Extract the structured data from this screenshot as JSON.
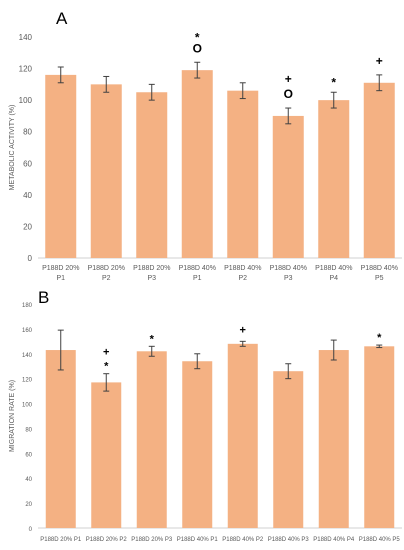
{
  "chart_data": [
    {
      "type": "bar",
      "panel_label": "A",
      "ylabel": "METABOLIC ACTIVITY  (%)",
      "ylim": [
        0,
        140
      ],
      "ytick_step": 20,
      "grid": false,
      "bar_color": "#F4B183",
      "categories": [
        [
          "P188D 20%",
          "P1"
        ],
        [
          "P188D 20%",
          "P2"
        ],
        [
          "P188D 20%",
          "P3"
        ],
        [
          "P188D 40%",
          "P1"
        ],
        [
          "P188D 40%",
          "P2"
        ],
        [
          "P188D 40%",
          "P3"
        ],
        [
          "P188D 40%",
          "P4"
        ],
        [
          "P188D 40%",
          "P5"
        ]
      ],
      "values": [
        116,
        110,
        105,
        119,
        106,
        90,
        100,
        111
      ],
      "errors": [
        5,
        5,
        5,
        5,
        5,
        5,
        5,
        5
      ],
      "annotations": [
        [],
        [],
        [],
        [
          "*",
          "O"
        ],
        [],
        [
          "+",
          "O"
        ],
        [
          "*"
        ],
        [
          "+"
        ]
      ]
    },
    {
      "type": "bar",
      "panel_label": "B",
      "ylabel": "MIGRATION RATE  (%)",
      "ylim": [
        0,
        180
      ],
      "ytick_step": 20,
      "grid": false,
      "bar_color": "#F4B183",
      "categories": [
        [
          "P188D 20% P1"
        ],
        [
          "P188D 20% P2"
        ],
        [
          "P188D 20% P3"
        ],
        [
          "P188D 40% P1"
        ],
        [
          "P188D 40% P2"
        ],
        [
          "P188D 40% P3"
        ],
        [
          "P188D 40% P4"
        ],
        [
          "P188D 40% P5"
        ]
      ],
      "values": [
        143,
        117,
        142,
        134,
        148,
        126,
        143,
        146
      ],
      "errors": [
        16,
        7,
        4,
        6,
        2,
        6,
        8,
        1
      ],
      "annotations": [
        [],
        [
          "+",
          "*"
        ],
        [
          "*"
        ],
        [],
        [
          "+"
        ],
        [],
        [],
        [
          "*"
        ]
      ]
    }
  ]
}
